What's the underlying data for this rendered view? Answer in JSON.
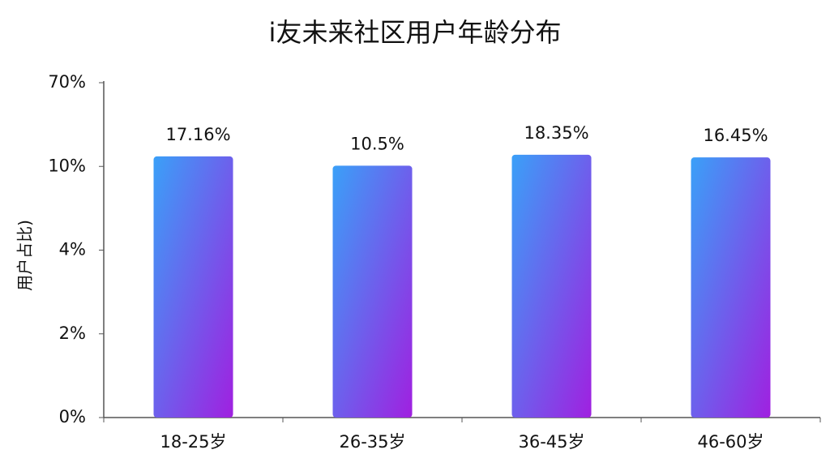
{
  "chart_data": {
    "type": "bar",
    "title": "i友未来社区用户年龄分布",
    "y_label": "用户占比)",
    "categories": [
      "18-25岁",
      "26-35岁",
      "36-45岁",
      "46-60岁"
    ],
    "values": [
      17.16,
      10.5,
      18.35,
      16.45
    ],
    "value_labels": [
      "17.16%",
      "10.5%",
      "18.35%",
      "16.45%"
    ],
    "gradient": [
      "#3aa0f8",
      "#a020e0"
    ],
    "ylim": [
      0,
      70
    ],
    "yticks": [
      {
        "value": 0,
        "label": "0%"
      },
      {
        "value": 2,
        "label": "2%"
      },
      {
        "value": 4,
        "label": "4%"
      },
      {
        "value": 10,
        "label": "10%"
      },
      {
        "value": 70,
        "label": "70%"
      }
    ]
  }
}
